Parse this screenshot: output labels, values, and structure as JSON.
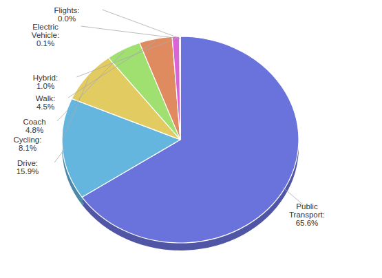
{
  "chart_data": {
    "type": "pie",
    "categories": [
      "Public Transport:",
      "Drive:",
      "Cycling:",
      "Coach",
      "Walk:",
      "Hybrid:",
      "Electric Vehicle:",
      "Flights:"
    ],
    "values": [
      65.6,
      15.9,
      8.1,
      4.8,
      4.5,
      1.0,
      0.1,
      0.0
    ],
    "value_labels": [
      "65.6%",
      "15.9%",
      "8.1%",
      "4.8%",
      "4.5%",
      "1.0%",
      "0.1%",
      "0.0%"
    ],
    "colors": [
      "#6a72dc",
      "#64b6de",
      "#e2cc62",
      "#9fe070",
      "#e08a60",
      "#d864d8",
      "#b0b0b0",
      "#a0a0a0"
    ],
    "data_labels": true
  }
}
